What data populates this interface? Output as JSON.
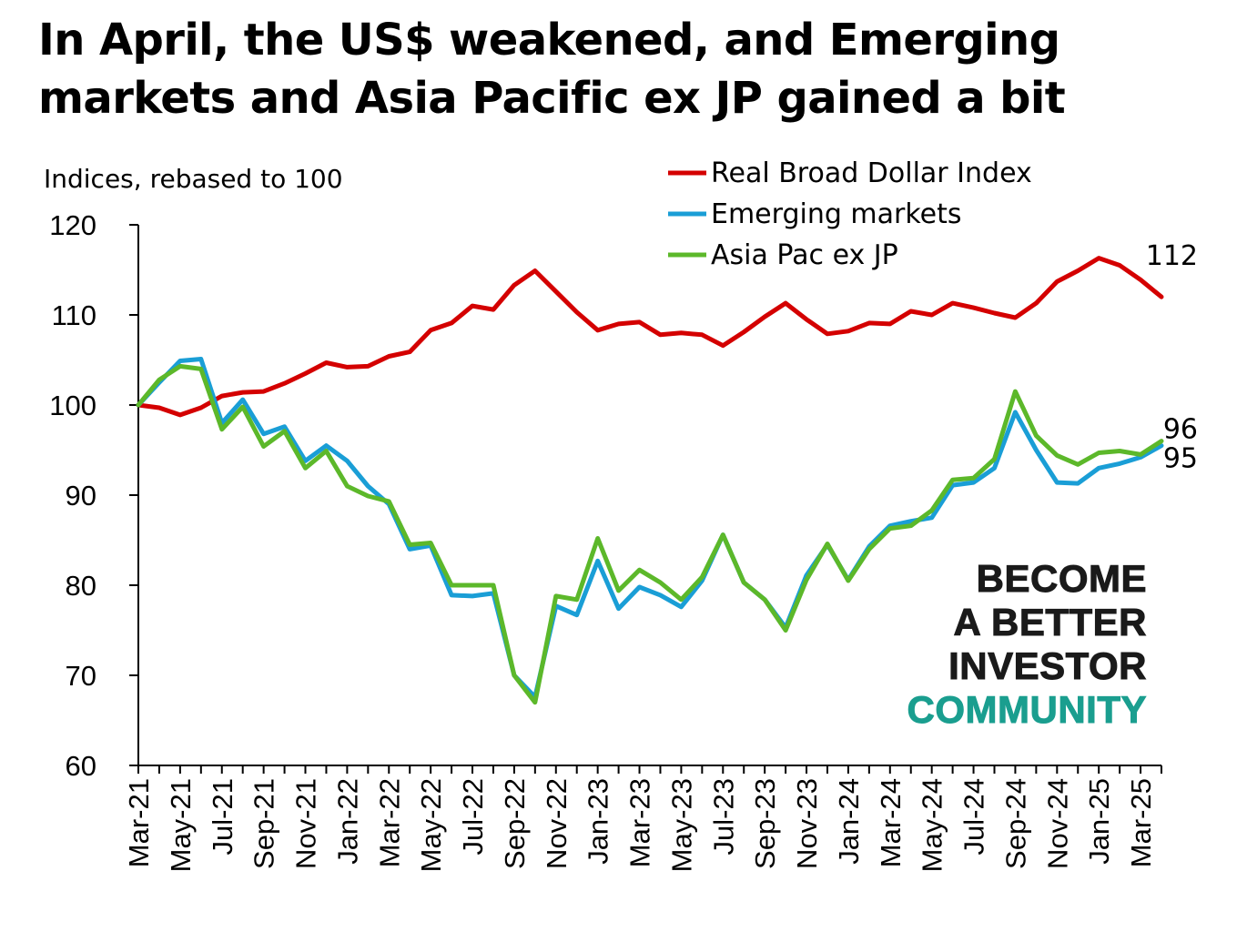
{
  "title": "In April, the US$ weakened, and Emerging markets and Asia Pacific ex JP gained a bit",
  "watermark": {
    "line1": "BECOME",
    "line2": "A BETTER",
    "line3": "INVESTOR",
    "line4": "COMMUNITY",
    "accent_color": "#1a9e8f"
  },
  "chart_data": {
    "type": "line",
    "title": "In April, the US$ weakened, and Emerging markets and Asia Pacific ex JP gained a bit",
    "ylabel": "Indices, rebased to 100",
    "xlabel": "",
    "ylim": [
      60,
      120
    ],
    "yticks": [
      60,
      70,
      80,
      90,
      100,
      110,
      120
    ],
    "grid": false,
    "legend_position": "top-right",
    "x": [
      "Mar-21",
      "Apr-21",
      "May-21",
      "Jun-21",
      "Jul-21",
      "Aug-21",
      "Sep-21",
      "Oct-21",
      "Nov-21",
      "Dec-21",
      "Jan-22",
      "Feb-22",
      "Mar-22",
      "Apr-22",
      "May-22",
      "Jun-22",
      "Jul-22",
      "Aug-22",
      "Sep-22",
      "Oct-22",
      "Nov-22",
      "Dec-22",
      "Jan-23",
      "Feb-23",
      "Mar-23",
      "Apr-23",
      "May-23",
      "Jun-23",
      "Jul-23",
      "Aug-23",
      "Sep-23",
      "Oct-23",
      "Nov-23",
      "Dec-23",
      "Jan-24",
      "Feb-24",
      "Mar-24",
      "Apr-24",
      "May-24",
      "Jun-24",
      "Jul-24",
      "Aug-24",
      "Sep-24",
      "Oct-24",
      "Nov-24",
      "Dec-24",
      "Jan-25",
      "Feb-25",
      "Mar-25",
      "Apr-25"
    ],
    "x_tick_labels": [
      "Mar-21",
      "May-21",
      "Jul-21",
      "Sep-21",
      "Nov-21",
      "Jan-22",
      "Mar-22",
      "May-22",
      "Jul-22",
      "Sep-22",
      "Nov-22",
      "Jan-23",
      "Mar-23",
      "May-23",
      "Jul-23",
      "Sep-23",
      "Nov-23",
      "Jan-24",
      "Mar-24",
      "May-24",
      "Jul-24",
      "Sep-24",
      "Nov-24",
      "Jan-25",
      "Mar-25"
    ],
    "series": [
      {
        "name": "Real Broad Dollar Index",
        "color": "#d40000",
        "end_label": "112",
        "values": [
          100.0,
          99.7,
          98.9,
          99.7,
          101.0,
          101.4,
          101.5,
          102.4,
          103.5,
          104.7,
          104.2,
          104.3,
          105.4,
          105.9,
          108.3,
          109.1,
          111.0,
          110.6,
          113.3,
          114.9,
          112.6,
          110.3,
          108.3,
          109.0,
          109.2,
          107.8,
          108.0,
          107.8,
          106.6,
          108.1,
          109.8,
          111.3,
          109.5,
          107.9,
          108.2,
          109.1,
          109.0,
          110.4,
          110.0,
          111.3,
          110.8,
          110.2,
          109.7,
          111.3,
          113.7,
          114.9,
          116.3,
          115.5,
          113.9,
          112.0
        ]
      },
      {
        "name": "Emerging markets",
        "color": "#1a9ed6",
        "end_label": "95",
        "values": [
          100.0,
          102.5,
          104.9,
          105.1,
          98.0,
          100.6,
          96.8,
          97.6,
          93.8,
          95.5,
          93.8,
          91.0,
          89.0,
          84.0,
          84.4,
          78.9,
          78.8,
          79.1,
          70.0,
          67.6,
          77.7,
          76.7,
          82.7,
          77.4,
          79.8,
          78.9,
          77.6,
          80.5,
          85.6,
          80.3,
          78.4,
          75.3,
          81.1,
          84.5,
          80.6,
          84.3,
          86.6,
          87.1,
          87.5,
          91.1,
          91.4,
          93.0,
          99.2,
          95.0,
          91.4,
          91.3,
          93.0,
          93.5,
          94.2,
          95.5
        ]
      },
      {
        "name": "Asia Pac ex JP",
        "color": "#5cb82a",
        "end_label": "96",
        "values": [
          100.0,
          102.8,
          104.3,
          104.0,
          97.3,
          99.8,
          95.4,
          97.1,
          93.0,
          94.9,
          91.0,
          89.9,
          89.3,
          84.5,
          84.7,
          80.0,
          80.0,
          80.0,
          70.0,
          67.0,
          78.8,
          78.4,
          85.2,
          79.4,
          81.7,
          80.3,
          78.4,
          80.9,
          85.6,
          80.3,
          78.4,
          75.0,
          80.6,
          84.6,
          80.5,
          84.0,
          86.3,
          86.6,
          88.3,
          91.7,
          91.9,
          94.0,
          101.5,
          96.6,
          94.4,
          93.4,
          94.7,
          94.9,
          94.5,
          96.0
        ]
      }
    ]
  }
}
